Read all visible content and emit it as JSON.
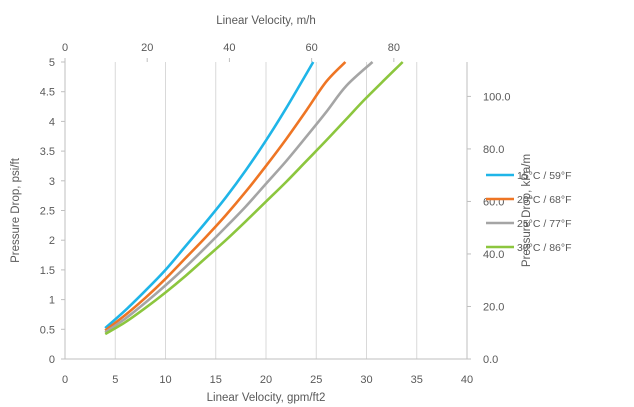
{
  "chart_data": {
    "type": "line",
    "title": "",
    "xlabel": "Linear Velocity, gpm/ft2",
    "ylabel": "Pressure Drop, psi/ft",
    "x2label": "Linear Velocity, m/h",
    "y2label": "Pressure Drop, kPa/m",
    "xlim": [
      0,
      40
    ],
    "ylim": [
      0,
      5
    ],
    "x2lim": [
      0,
      97.8
    ],
    "y2lim": [
      0,
      113.1
    ],
    "x_ticks": [
      "0",
      "5",
      "10",
      "15",
      "20",
      "25",
      "30",
      "35",
      "40"
    ],
    "y_ticks": [
      "0",
      "0.5",
      "1",
      "1.5",
      "2",
      "2.5",
      "3",
      "3.5",
      "4",
      "4.5",
      "5"
    ],
    "x2_ticks": [
      "0",
      "20",
      "40",
      "60",
      "80"
    ],
    "x2_tick_values": [
      0,
      20,
      40,
      60,
      80
    ],
    "y2_ticks": [
      "0.0",
      "20.0",
      "40.0",
      "60.0",
      "80.0",
      "100.0"
    ],
    "y2_tick_values": [
      0,
      20,
      40,
      60,
      80,
      100
    ],
    "grid": {
      "vertical": true,
      "horizontal": false
    },
    "legend_position": "right",
    "series": [
      {
        "name": "15°C / 59°F",
        "color": "#1fb5e8",
        "x": [
          4,
          6,
          8,
          10,
          12,
          14,
          16,
          18,
          20,
          22,
          24.7
        ],
        "y": [
          0.52,
          0.82,
          1.15,
          1.5,
          1.9,
          2.3,
          2.72,
          3.18,
          3.68,
          4.22,
          5.0
        ]
      },
      {
        "name": "20°C / 68°F",
        "color": "#ee7524",
        "x": [
          4,
          6,
          8,
          10,
          12,
          14,
          16,
          18,
          20,
          22,
          24,
          26,
          27.9
        ],
        "y": [
          0.48,
          0.74,
          1.03,
          1.35,
          1.7,
          2.05,
          2.42,
          2.82,
          3.25,
          3.7,
          4.18,
          4.67,
          5.0
        ]
      },
      {
        "name": "25°C / 77°F",
        "color": "#a5a5a5",
        "x": [
          4,
          6,
          8,
          10,
          12,
          14,
          16,
          18,
          20,
          22,
          24,
          26,
          28,
          30.6
        ],
        "y": [
          0.45,
          0.68,
          0.95,
          1.24,
          1.55,
          1.88,
          2.22,
          2.57,
          2.95,
          3.33,
          3.74,
          4.16,
          4.6,
          5.0
        ]
      },
      {
        "name": "30°C / 86°F",
        "color": "#8cc63e",
        "x": [
          4,
          6,
          8,
          10,
          12,
          14,
          16,
          18,
          20,
          22,
          24,
          26,
          28,
          30,
          33.6
        ],
        "y": [
          0.42,
          0.62,
          0.86,
          1.12,
          1.4,
          1.7,
          2.0,
          2.32,
          2.65,
          2.98,
          3.33,
          3.68,
          4.04,
          4.4,
          5.0
        ]
      }
    ]
  }
}
